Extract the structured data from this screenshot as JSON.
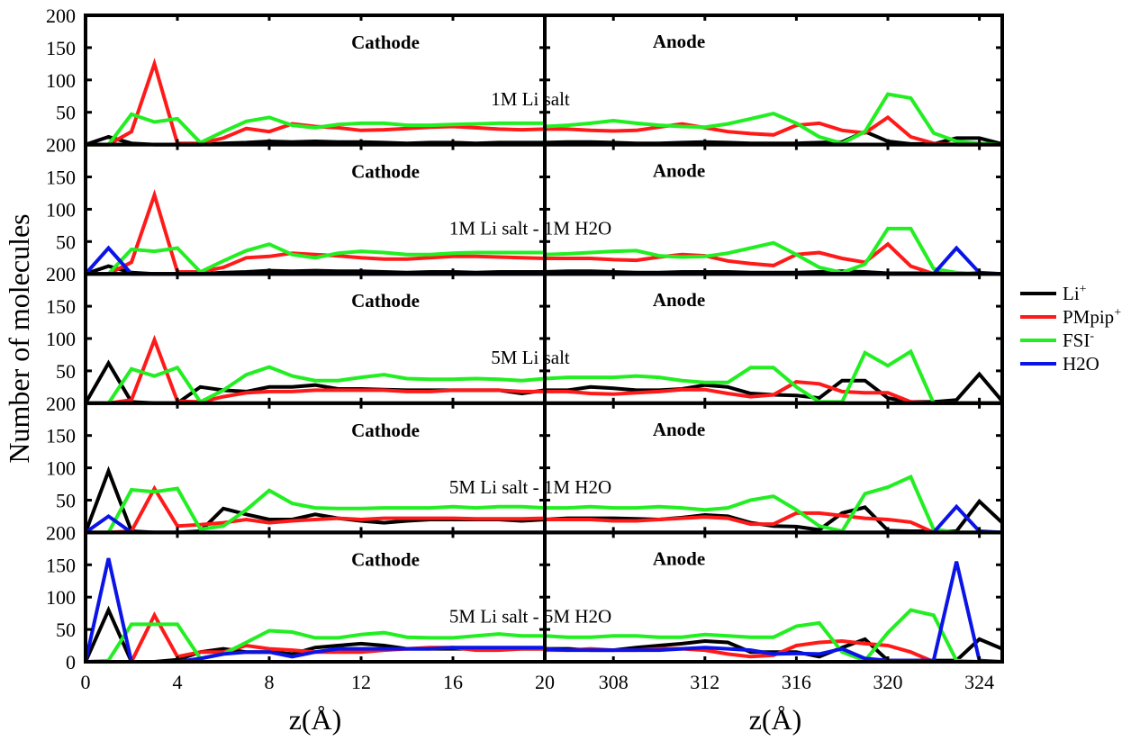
{
  "chart_data": {
    "type": "line",
    "ylabel": "Number of molecules",
    "xlabel_left": "z(Å)",
    "xlabel_right": "z(Å)",
    "ylim": [
      0,
      200
    ],
    "y_tick_labels": [
      "200",
      "150",
      "100",
      "50"
    ],
    "y_bottom_label": "0",
    "x_left": {
      "range": [
        0,
        20
      ],
      "x": [
        0,
        1,
        2,
        3,
        4,
        5,
        6,
        7,
        8,
        9,
        10,
        11,
        12,
        13,
        14,
        15,
        16,
        17,
        18,
        19,
        20
      ],
      "ticks": [
        0,
        4,
        8,
        12,
        16,
        20
      ],
      "tick_labels": [
        "0",
        "4",
        "8",
        "12",
        "16",
        "20"
      ]
    },
    "x_right": {
      "range": [
        305,
        325
      ],
      "x": [
        305,
        306,
        307,
        308,
        309,
        310,
        311,
        312,
        313,
        314,
        315,
        316,
        317,
        318,
        319,
        320,
        321,
        322,
        323,
        324,
        325
      ],
      "ticks": [
        308,
        312,
        316,
        320,
        324
      ],
      "tick_labels": [
        "308",
        "312",
        "316",
        "320",
        "324"
      ]
    },
    "legend": {
      "placement": "right",
      "entries": [
        {
          "name": "Li",
          "sup": "+",
          "color": "#000000"
        },
        {
          "name": "PMpip",
          "sup": "+",
          "color": "#ff1a1a"
        },
        {
          "name": "FSI",
          "sup": "-",
          "color": "#22ee22"
        },
        {
          "name": "H2O",
          "sup": "",
          "color": "#0a14e6"
        }
      ]
    },
    "panels": [
      {
        "condition": "1M Li salt",
        "left_title": "Cathode",
        "right_title": "Anode",
        "series": [
          {
            "name": "Li+",
            "left": [
              0,
              12,
              2,
              0,
              0,
              0,
              2,
              3,
              5,
              4,
              5,
              4,
              4,
              3,
              2,
              3,
              3,
              2,
              3,
              3,
              3
            ],
            "right": [
              3,
              4,
              4,
              3,
              2,
              2,
              3,
              4,
              3,
              2,
              2,
              2,
              3,
              4,
              20,
              5,
              1,
              1,
              10,
              10,
              1
            ]
          },
          {
            "name": "PMpip+",
            "left": [
              0,
              0,
              20,
              125,
              2,
              2,
              10,
              25,
              20,
              32,
              28,
              26,
              22,
              23,
              25,
              27,
              28,
              26,
              24,
              23,
              24
            ],
            "right": [
              24,
              24,
              22,
              21,
              22,
              27,
              32,
              26,
              20,
              17,
              15,
              30,
              33,
              22,
              18,
              42,
              12,
              2,
              0,
              0,
              0
            ]
          },
          {
            "name": "FSI-",
            "left": [
              0,
              0,
              47,
              35,
              40,
              3,
              20,
              36,
              42,
              30,
              26,
              31,
              33,
              33,
              30,
              30,
              31,
              32,
              33,
              33,
              33
            ],
            "right": [
              28,
              30,
              33,
              37,
              33,
              30,
              28,
              27,
              32,
              40,
              48,
              33,
              12,
              2,
              20,
              78,
              72,
              18,
              5,
              2,
              0
            ]
          }
        ]
      },
      {
        "condition": "1M Li salt - 1M H2O",
        "left_title": "Cathode",
        "right_title": "Anode",
        "series": [
          {
            "name": "Li+",
            "left": [
              0,
              12,
              2,
              0,
              0,
              0,
              2,
              3,
              5,
              4,
              5,
              4,
              4,
              3,
              2,
              3,
              3,
              2,
              3,
              3,
              3
            ],
            "right": [
              3,
              4,
              4,
              3,
              2,
              2,
              3,
              3,
              3,
              2,
              2,
              2,
              3,
              4,
              3,
              1,
              1,
              1,
              1,
              1,
              0
            ]
          },
          {
            "name": "PMpip+",
            "left": [
              0,
              0,
              18,
              122,
              3,
              3,
              10,
              25,
              27,
              32,
              30,
              28,
              25,
              23,
              23,
              25,
              27,
              27,
              26,
              25,
              24
            ],
            "right": [
              24,
              24,
              24,
              22,
              21,
              26,
              30,
              28,
              20,
              16,
              13,
              30,
              33,
              24,
              18,
              46,
              12,
              0,
              0,
              0,
              0
            ]
          },
          {
            "name": "FSI-",
            "left": [
              0,
              0,
              38,
              35,
              40,
              3,
              20,
              36,
              46,
              30,
              25,
              32,
              35,
              33,
              30,
              30,
              32,
              33,
              33,
              33,
              33
            ],
            "right": [
              30,
              31,
              33,
              35,
              36,
              28,
              26,
              27,
              32,
              40,
              48,
              30,
              10,
              2,
              15,
              70,
              70,
              8,
              2,
              0,
              0
            ]
          },
          {
            "name": "H2O",
            "left": [
              0,
              40,
              0,
              0,
              0,
              0,
              0,
              0,
              0,
              0,
              0,
              0,
              0,
              0,
              0,
              0,
              0,
              0,
              0,
              0,
              0
            ],
            "right": [
              0,
              0,
              0,
              0,
              0,
              0,
              0,
              0,
              0,
              0,
              0,
              0,
              0,
              0,
              0,
              0,
              0,
              0,
              40,
              2,
              0
            ]
          }
        ]
      },
      {
        "condition": "5M Li salt",
        "left_title": "Cathode",
        "right_title": "Anode",
        "series": [
          {
            "name": "Li+",
            "left": [
              0,
              62,
              2,
              0,
              0,
              25,
              20,
              18,
              25,
              25,
              28,
              22,
              22,
              21,
              20,
              20,
              20,
              20,
              20,
              15,
              20
            ],
            "right": [
              20,
              20,
              25,
              23,
              20,
              20,
              22,
              28,
              25,
              15,
              13,
              12,
              8,
              35,
              35,
              8,
              2,
              2,
              5,
              45,
              3
            ]
          },
          {
            "name": "PMpip+",
            "left": [
              0,
              0,
              5,
              98,
              3,
              2,
              10,
              16,
              18,
              18,
              20,
              20,
              20,
              20,
              18,
              18,
              20,
              20,
              20,
              18,
              18
            ],
            "right": [
              18,
              18,
              15,
              14,
              16,
              18,
              21,
              21,
              15,
              10,
              13,
              33,
              30,
              18,
              16,
              16,
              2,
              0,
              0,
              0,
              0
            ]
          },
          {
            "name": "FSI-",
            "left": [
              0,
              0,
              53,
              42,
              55,
              2,
              20,
              44,
              56,
              42,
              35,
              35,
              40,
              44,
              38,
              37,
              37,
              38,
              37,
              35,
              38
            ],
            "right": [
              38,
              40,
              40,
              40,
              42,
              40,
              35,
              32,
              32,
              55,
              55,
              25,
              2,
              2,
              78,
              58,
              80,
              0,
              0,
              0,
              0
            ]
          }
        ]
      },
      {
        "condition": "5M Li salt - 1M H2O",
        "left_title": "Cathode",
        "right_title": "Anode",
        "series": [
          {
            "name": "Li+",
            "left": [
              0,
              95,
              2,
              0,
              0,
              2,
              37,
              28,
              20,
              20,
              28,
              22,
              18,
              15,
              18,
              20,
              20,
              20,
              20,
              18,
              20
            ],
            "right": [
              20,
              22,
              22,
              22,
              21,
              20,
              23,
              27,
              25,
              15,
              10,
              9,
              4,
              30,
              39,
              3,
              2,
              2,
              2,
              48,
              15
            ]
          },
          {
            "name": "PMpip+",
            "left": [
              0,
              0,
              2,
              68,
              10,
              12,
              15,
              20,
              15,
              18,
              20,
              22,
              20,
              22,
              22,
              22,
              22,
              21,
              21,
              21,
              22
            ],
            "right": [
              20,
              20,
              20,
              18,
              18,
              20,
              22,
              24,
              22,
              13,
              13,
              30,
              30,
              26,
              22,
              20,
              16,
              0,
              0,
              0,
              0
            ]
          },
          {
            "name": "FSI-",
            "left": [
              0,
              0,
              66,
              63,
              68,
              5,
              10,
              35,
              65,
              45,
              38,
              37,
              37,
              38,
              38,
              38,
              40,
              38,
              40,
              40,
              38
            ],
            "right": [
              38,
              38,
              40,
              38,
              38,
              40,
              38,
              35,
              38,
              50,
              56,
              35,
              10,
              2,
              60,
              70,
              86,
              5,
              0,
              0,
              0
            ]
          },
          {
            "name": "H2O",
            "left": [
              0,
              25,
              0,
              0,
              0,
              0,
              0,
              0,
              0,
              0,
              0,
              0,
              0,
              0,
              0,
              0,
              0,
              0,
              0,
              0,
              0
            ],
            "right": [
              0,
              0,
              0,
              0,
              0,
              0,
              0,
              0,
              0,
              0,
              0,
              0,
              0,
              0,
              0,
              0,
              0,
              0,
              40,
              2,
              0
            ]
          }
        ]
      },
      {
        "condition": "5M Li salt - 5M H2O",
        "left_title": "Cathode",
        "right_title": "Anode",
        "series": [
          {
            "name": "Li+",
            "left": [
              0,
              80,
              0,
              0,
              3,
              15,
              20,
              15,
              15,
              12,
              22,
              25,
              28,
              25,
              20,
              20,
              20,
              20,
              20,
              20,
              20
            ],
            "right": [
              20,
              20,
              18,
              18,
              22,
              25,
              28,
              32,
              30,
              15,
              15,
              15,
              8,
              22,
              35,
              2,
              2,
              2,
              2,
              35,
              20
            ]
          },
          {
            "name": "PMpip+",
            "left": [
              0,
              0,
              0,
              72,
              8,
              15,
              15,
              25,
              20,
              18,
              15,
              15,
              15,
              18,
              20,
              22,
              22,
              18,
              18,
              20,
              20
            ],
            "right": [
              18,
              18,
              20,
              18,
              18,
              20,
              20,
              18,
              12,
              8,
              10,
              25,
              30,
              32,
              28,
              25,
              15,
              0,
              0,
              0,
              0
            ]
          },
          {
            "name": "FSI-",
            "left": [
              0,
              2,
              58,
              58,
              58,
              5,
              12,
              30,
              48,
              46,
              37,
              37,
              42,
              45,
              38,
              37,
              37,
              40,
              43,
              40,
              40
            ],
            "right": [
              40,
              38,
              38,
              40,
              40,
              38,
              38,
              42,
              40,
              38,
              38,
              55,
              60,
              15,
              2,
              45,
              80,
              72,
              2,
              0,
              0
            ]
          },
          {
            "name": "H2O",
            "left": [
              0,
              160,
              0,
              0,
              0,
              5,
              12,
              15,
              15,
              8,
              15,
              20,
              20,
              20,
              20,
              20,
              22,
              22,
              22,
              22,
              22
            ],
            "right": [
              20,
              18,
              18,
              18,
              18,
              18,
              20,
              22,
              20,
              18,
              12,
              13,
              12,
              20,
              5,
              2,
              2,
              2,
              155,
              2,
              0
            ]
          }
        ]
      }
    ]
  }
}
